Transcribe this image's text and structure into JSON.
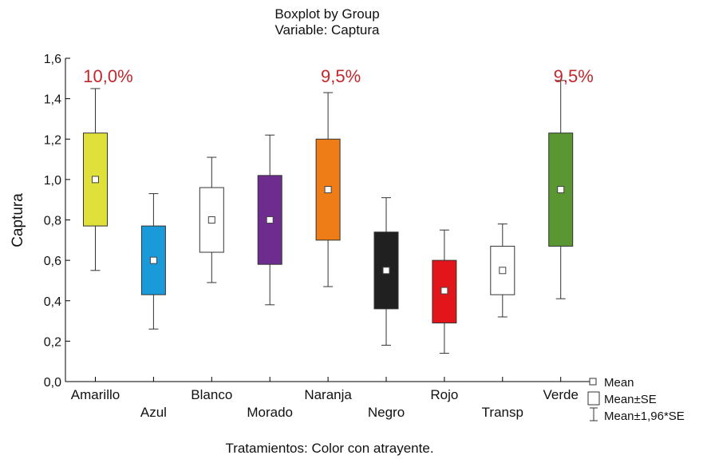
{
  "chart_data": {
    "type": "boxplot",
    "title": "Boxplot by Group",
    "subtitle": "Variable: Captura",
    "xlabel": "Tratamientos: Color con atrayente.",
    "ylabel": "Captura",
    "ylim": [
      0,
      1.6
    ],
    "yticks": [
      "0,0",
      "0,2",
      "0,4",
      "0,6",
      "0,8",
      "1,0",
      "1,2",
      "1,4",
      "1,6"
    ],
    "categories": [
      "Amarillo",
      "Azul",
      "Blanco",
      "Morado",
      "Naranja",
      "Negro",
      "Rojo",
      "Transp",
      "Verde"
    ],
    "series": [
      {
        "category": "Amarillo",
        "mean": 1.0,
        "se_low": 0.77,
        "se_high": 1.23,
        "ci_low": 0.55,
        "ci_high": 1.45,
        "color": "#dfe03a"
      },
      {
        "category": "Azul",
        "mean": 0.6,
        "se_low": 0.43,
        "se_high": 0.77,
        "ci_low": 0.26,
        "ci_high": 0.93,
        "color": "#1a9ad9"
      },
      {
        "category": "Blanco",
        "mean": 0.8,
        "se_low": 0.64,
        "se_high": 0.96,
        "ci_low": 0.49,
        "ci_high": 1.11,
        "color": "#ffffff"
      },
      {
        "category": "Morado",
        "mean": 0.8,
        "se_low": 0.58,
        "se_high": 1.02,
        "ci_low": 0.38,
        "ci_high": 1.22,
        "color": "#6e2c8f"
      },
      {
        "category": "Naranja",
        "mean": 0.95,
        "se_low": 0.7,
        "se_high": 1.2,
        "ci_low": 0.47,
        "ci_high": 1.43,
        "color": "#ee7d18"
      },
      {
        "category": "Negro",
        "mean": 0.55,
        "se_low": 0.36,
        "se_high": 0.74,
        "ci_low": 0.18,
        "ci_high": 0.91,
        "color": "#202020"
      },
      {
        "category": "Rojo",
        "mean": 0.45,
        "se_low": 0.29,
        "se_high": 0.6,
        "ci_low": 0.14,
        "ci_high": 0.75,
        "color": "#e2151b"
      },
      {
        "category": "Transp",
        "mean": 0.55,
        "se_low": 0.43,
        "se_high": 0.67,
        "ci_low": 0.32,
        "ci_high": 0.78,
        "color": "#ffffff"
      },
      {
        "category": "Verde",
        "mean": 0.95,
        "se_low": 0.67,
        "se_high": 1.23,
        "ci_low": 0.41,
        "ci_high": 1.49,
        "color": "#5a9632"
      }
    ],
    "annotations": [
      {
        "category": "Amarillo",
        "text": "10,0%",
        "color": "#c0282d"
      },
      {
        "category": "Naranja",
        "text": "9,5%",
        "color": "#c0282d"
      },
      {
        "category": "Verde",
        "text": "9,5%",
        "color": "#c0282d"
      }
    ],
    "legend": {
      "position": "bottom-right",
      "items": [
        "Mean",
        "Mean±SE",
        "Mean±1,96*SE"
      ]
    },
    "grid": false
  }
}
